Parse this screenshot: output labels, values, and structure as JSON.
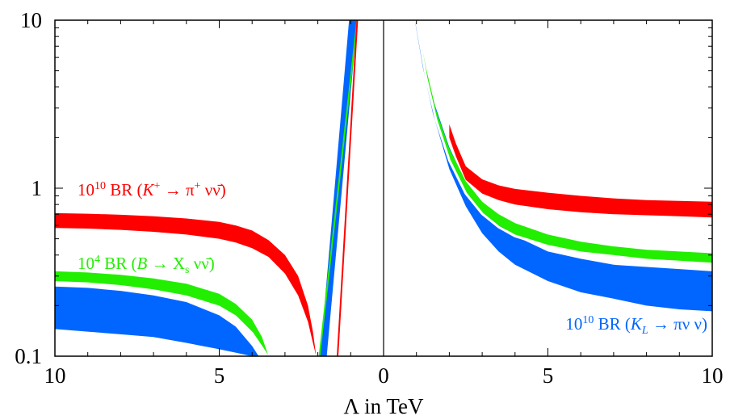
{
  "chart_data": {
    "type": "area",
    "title": "",
    "xlabel": "Λ in TeV",
    "ylabel": "",
    "y_scale": "log",
    "ylim": [
      0.1,
      10
    ],
    "x_tick_labels": [
      "10",
      "5",
      "0",
      "5",
      "10"
    ],
    "y_tick_labels": [
      "0.1",
      "1",
      "10"
    ],
    "grid": false,
    "zero_line": true,
    "colors": {
      "kplus": "#ff0000",
      "bxs": "#22ee00",
      "kl": "#0066ff"
    },
    "series": [
      {
        "key": "kplus",
        "name": "10^10 BR (K+ → π+ νν̄)",
        "label_parts": [
          "10",
          "10",
          " BR (",
          "K",
          "+",
          "  → π",
          "+",
          " νν̄)"
        ],
        "negative": {
          "x": [
            10,
            9,
            8,
            7,
            6,
            5,
            4.5,
            4,
            3.5,
            3,
            2.6,
            2.3,
            2.15,
            2.05
          ],
          "lower": [
            0.58,
            0.575,
            0.565,
            0.55,
            0.53,
            0.5,
            0.475,
            0.44,
            0.39,
            0.31,
            0.23,
            0.16,
            0.12,
            0.1
          ],
          "upper": [
            0.71,
            0.705,
            0.695,
            0.68,
            0.66,
            0.63,
            0.6,
            0.56,
            0.49,
            0.4,
            0.3,
            0.2,
            0.14,
            0.1
          ]
        },
        "positive": {
          "x": [
            2.0,
            2.2,
            2.5,
            3,
            3.5,
            4,
            5,
            6,
            7,
            8,
            9,
            10
          ],
          "lower": [
            2.0,
            1.55,
            1.12,
            0.93,
            0.85,
            0.8,
            0.75,
            0.72,
            0.7,
            0.69,
            0.68,
            0.67
          ],
          "upper": [
            2.4,
            1.85,
            1.35,
            1.13,
            1.04,
            0.99,
            0.94,
            0.9,
            0.87,
            0.85,
            0.84,
            0.83
          ]
        },
        "peak_x": [
          -1.4,
          -0.8
        ]
      },
      {
        "key": "bxs",
        "name": "10^4 BR (B → Xs νν̄)",
        "label_parts": [
          "10",
          "4",
          " BR (",
          "B",
          "  → X",
          "s",
          " νν̄)"
        ],
        "negative": {
          "x": [
            10,
            9,
            8,
            7,
            6,
            5,
            4.5,
            4,
            3.7,
            3.5
          ],
          "lower": [
            0.28,
            0.275,
            0.265,
            0.25,
            0.23,
            0.2,
            0.175,
            0.14,
            0.115,
            0.1
          ],
          "upper": [
            0.32,
            0.315,
            0.305,
            0.29,
            0.27,
            0.235,
            0.205,
            0.165,
            0.13,
            0.1
          ]
        },
        "positive": {
          "x": [
            1.0,
            1.3,
            1.6,
            2,
            2.5,
            3,
            3.5,
            4,
            5,
            6,
            7,
            8,
            9,
            10
          ],
          "lower": [
            10,
            4.6,
            2.6,
            1.5,
            0.95,
            0.72,
            0.6,
            0.53,
            0.46,
            0.42,
            0.4,
            0.38,
            0.37,
            0.36
          ],
          "upper": [
            10,
            5.1,
            2.9,
            1.72,
            1.1,
            0.83,
            0.7,
            0.62,
            0.53,
            0.48,
            0.45,
            0.43,
            0.42,
            0.41
          ]
        },
        "peak_x": [
          -1.95,
          -0.8
        ]
      },
      {
        "key": "kl",
        "name": "10^10 BR (KL → πνν)",
        "label_parts": [
          "10",
          "10",
          " BR (",
          "K",
          "L",
          "  → πν ν)"
        ],
        "negative": {
          "x": [
            10,
            9,
            8,
            7,
            6,
            5,
            4.5,
            4,
            3.8
          ],
          "lower": [
            0.145,
            0.14,
            0.135,
            0.13,
            0.12,
            0.11,
            0.105,
            0.1,
            0.1
          ],
          "upper": [
            0.26,
            0.255,
            0.245,
            0.23,
            0.21,
            0.175,
            0.15,
            0.115,
            0.1
          ]
        },
        "positive": {
          "x": [
            0.95,
            1.2,
            1.5,
            2,
            2.5,
            3,
            3.5,
            4,
            5,
            6,
            7,
            8,
            9,
            10
          ],
          "lower": [
            10,
            5.2,
            2.8,
            1.3,
            0.78,
            0.54,
            0.42,
            0.35,
            0.28,
            0.24,
            0.22,
            0.2,
            0.19,
            0.185
          ],
          "upper": [
            10,
            6.0,
            3.4,
            1.75,
            1.08,
            0.78,
            0.61,
            0.52,
            0.42,
            0.38,
            0.35,
            0.34,
            0.33,
            0.32
          ]
        },
        "peak_x": [
          -1.85,
          -0.8
        ]
      }
    ]
  }
}
